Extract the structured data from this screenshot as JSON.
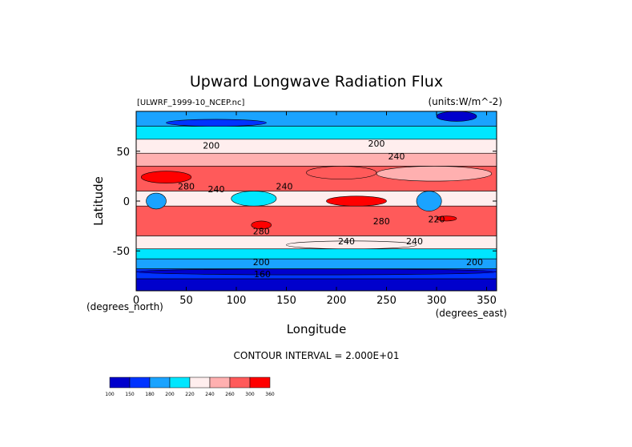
{
  "chart_data": {
    "type": "heatmap",
    "title": "Upward Longwave Radiation Flux",
    "file_label": "[ULWRF_1999-10_NCEP.nc]",
    "units_label": "(units:W/m^-2)",
    "xlabel": "Longitude",
    "ylabel": "Latitude",
    "x_units_label": "(degrees_east)",
    "y_units_label": "(degrees_north)",
    "xlim": [
      0,
      360
    ],
    "ylim": [
      -90,
      90
    ],
    "x_ticks": [
      "0",
      "50",
      "100",
      "150",
      "200",
      "250",
      "300",
      "350"
    ],
    "x_tick_values": [
      0,
      50,
      100,
      150,
      200,
      250,
      300,
      350
    ],
    "y_ticks": [
      "50",
      "0",
      "-50"
    ],
    "y_tick_values": [
      50,
      0,
      -50
    ],
    "contour_interval": "CONTOUR INTERVAL = 2.000E+01",
    "contour_labels": [
      {
        "text": "200",
        "lon": 75,
        "lat": 56
      },
      {
        "text": "200",
        "lon": 240,
        "lat": 58
      },
      {
        "text": "240",
        "lon": 260,
        "lat": 45
      },
      {
        "text": "240",
        "lon": 80,
        "lat": 12
      },
      {
        "text": "240",
        "lon": 148,
        "lat": 15
      },
      {
        "text": "280",
        "lon": 50,
        "lat": 15
      },
      {
        "text": "220",
        "lon": 300,
        "lat": -18
      },
      {
        "text": "280",
        "lon": 245,
        "lat": -20
      },
      {
        "text": "280",
        "lon": 125,
        "lat": -30
      },
      {
        "text": "240",
        "lon": 210,
        "lat": -40
      },
      {
        "text": "240",
        "lon": 278,
        "lat": -40
      },
      {
        "text": "200",
        "lon": 125,
        "lat": -61
      },
      {
        "text": "200",
        "lon": 338,
        "lat": -61
      },
      {
        "text": "160",
        "lon": 126,
        "lat": -73
      }
    ],
    "legend": {
      "levels": [
        "100",
        "150",
        "180",
        "200",
        "220",
        "240",
        "260",
        "300",
        "360"
      ],
      "colors": [
        "#0000cc",
        "#0033ff",
        "#1aa3ff",
        "#00e6ff",
        "#ffeeee",
        "#ffb0b0",
        "#ff5a5a",
        "#ff0000"
      ]
    },
    "bands": [
      {
        "lat": [
          90,
          75
        ],
        "value": 180,
        "color": "#1aa3ff"
      },
      {
        "lat": [
          75,
          62
        ],
        "value": 210,
        "color": "#00e6ff"
      },
      {
        "lat": [
          62,
          48
        ],
        "value": 230,
        "color": "#ffeeee"
      },
      {
        "lat": [
          48,
          35
        ],
        "value": 250,
        "color": "#ffb0b0"
      },
      {
        "lat": [
          35,
          10
        ],
        "value": 270,
        "color": "#ff5a5a"
      },
      {
        "lat": [
          10,
          -5
        ],
        "value": 245,
        "color": "#ffeeee"
      },
      {
        "lat": [
          -5,
          -35
        ],
        "value": 270,
        "color": "#ff5a5a"
      },
      {
        "lat": [
          -35,
          -48
        ],
        "value": 245,
        "color": "#ffeeee"
      },
      {
        "lat": [
          -48,
          -58
        ],
        "value": 225,
        "color": "#00e6ff"
      },
      {
        "lat": [
          -58,
          -68
        ],
        "value": 200,
        "color": "#1aa3ff"
      },
      {
        "lat": [
          -68,
          -78
        ],
        "value": 170,
        "color": "#0033ff"
      },
      {
        "lat": [
          -78,
          -90
        ],
        "value": 140,
        "color": "#0000cc"
      }
    ],
    "features": [
      {
        "lon": [
          5,
          55
        ],
        "lat": [
          30,
          18
        ],
        "value": 300,
        "color": "#ff0000"
      },
      {
        "lon": [
          240,
          355
        ],
        "lat": [
          35,
          20
        ],
        "value": 260,
        "color": "#ffb0b0"
      },
      {
        "lon": [
          170,
          240
        ],
        "lat": [
          35,
          22
        ],
        "value": 280,
        "color": "#ff5a5a"
      },
      {
        "lon": [
          95,
          140
        ],
        "lat": [
          10,
          -5
        ],
        "value": 210,
        "color": "#00e6ff"
      },
      {
        "lon": [
          10,
          30
        ],
        "lat": [
          8,
          -8
        ],
        "value": 200,
        "color": "#1aa3ff"
      },
      {
        "lon": [
          280,
          305
        ],
        "lat": [
          10,
          -10
        ],
        "value": 200,
        "color": "#1aa3ff"
      },
      {
        "lon": [
          190,
          250
        ],
        "lat": [
          5,
          -5
        ],
        "value": 310,
        "color": "#ff0000"
      },
      {
        "lon": [
          115,
          135
        ],
        "lat": [
          -20,
          -28
        ],
        "value": 310,
        "color": "#ff0000"
      },
      {
        "lon": [
          300,
          320
        ],
        "lat": [
          -15,
          -20
        ],
        "value": 310,
        "color": "#ff0000"
      },
      {
        "lon": [
          150,
          280
        ],
        "lat": [
          -40,
          -48
        ],
        "value": 240,
        "color": "#ffeeee"
      },
      {
        "lon": [
          0,
          360
        ],
        "lat": [
          -68,
          -74
        ],
        "value": 160,
        "color": "#0000cc"
      },
      {
        "lon": [
          30,
          130
        ],
        "lat": [
          82,
          75
        ],
        "value": 170,
        "color": "#0033ff"
      },
      {
        "lon": [
          300,
          340
        ],
        "lat": [
          90,
          80
        ],
        "value": 160,
        "color": "#0000cc"
      }
    ]
  }
}
